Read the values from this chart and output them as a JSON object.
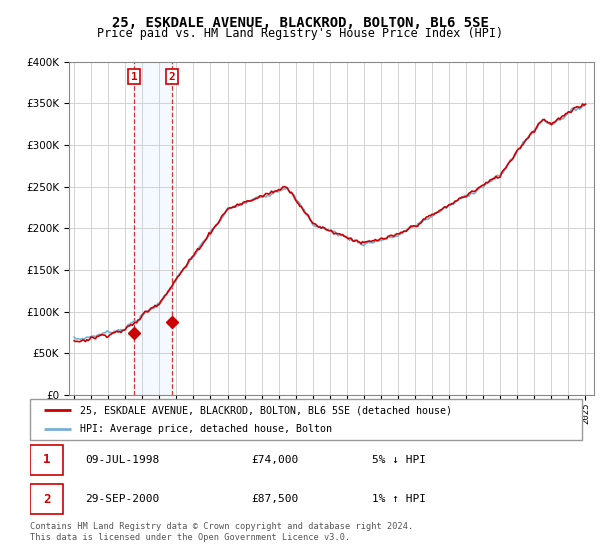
{
  "title": "25, ESKDALE AVENUE, BLACKROD, BOLTON, BL6 5SE",
  "subtitle": "Price paid vs. HM Land Registry's House Price Index (HPI)",
  "legend_line1": "25, ESKDALE AVENUE, BLACKROD, BOLTON, BL6 5SE (detached house)",
  "legend_line2": "HPI: Average price, detached house, Bolton",
  "sale1_date": "09-JUL-1998",
  "sale1_price_str": "£74,000",
  "sale1_hpi_str": "5% ↓ HPI",
  "sale1_year": 1998.52,
  "sale1_price": 74000,
  "sale2_date": "29-SEP-2000",
  "sale2_price_str": "£87,500",
  "sale2_hpi_str": "1% ↑ HPI",
  "sale2_year": 2000.75,
  "sale2_price": 87500,
  "footer": "Contains HM Land Registry data © Crown copyright and database right 2024.\nThis data is licensed under the Open Government Licence v3.0.",
  "hpi_color": "#7ab0d4",
  "price_color": "#cc0000",
  "shade_color": "#ddeeff",
  "marker_box_color": "#cc0000",
  "ylim": [
    0,
    400000
  ],
  "xlim_start": 1994.7,
  "xlim_end": 2025.5
}
